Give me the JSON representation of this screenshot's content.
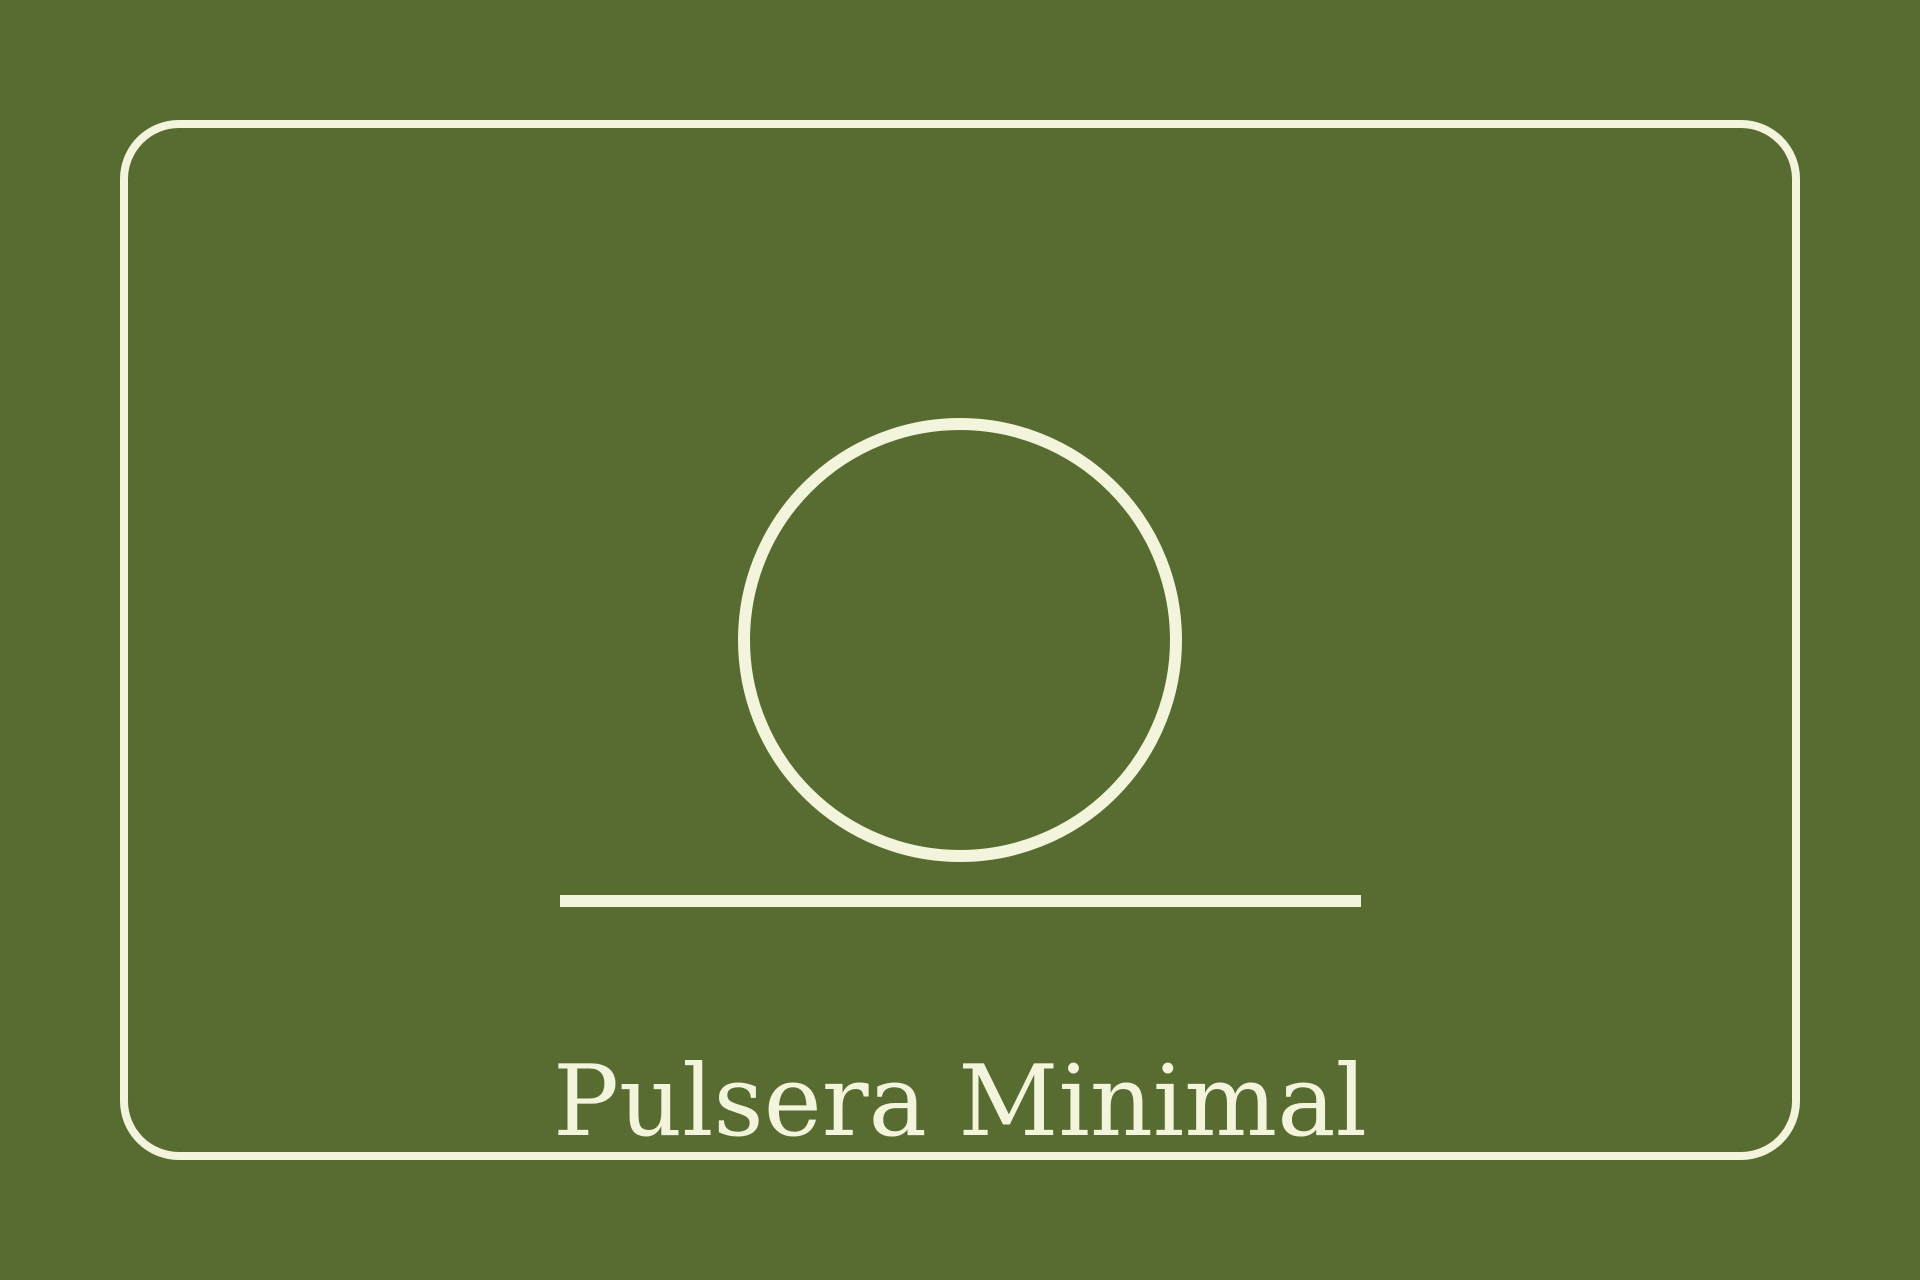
{
  "product": {
    "title": "Pulsera Minimal"
  },
  "colors": {
    "background": "#586c32",
    "stroke": "#f3f4dc"
  },
  "icons": {
    "main": "bracelet-ring-icon",
    "divider": "divider-line"
  }
}
